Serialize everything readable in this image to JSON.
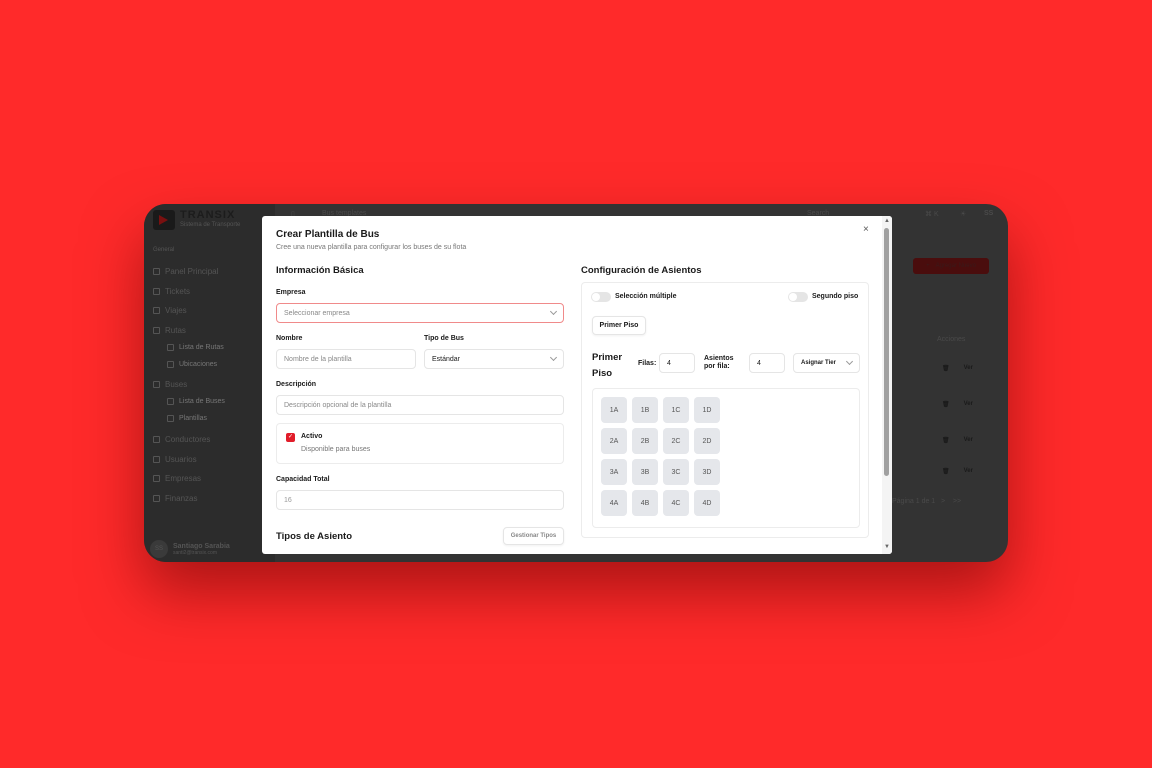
{
  "app": {
    "brand": "TRANSIX",
    "brand_sub": "Sistema de Transporte",
    "section": "General",
    "nav": [
      {
        "label": "Panel Principal",
        "icon": "dashboard-icon"
      },
      {
        "label": "Tickets",
        "icon": "ticket-icon"
      },
      {
        "label": "Viajes",
        "icon": "bus-icon"
      },
      {
        "label": "Rutas",
        "icon": "map-icon"
      },
      {
        "label": "Lista de Rutas",
        "icon": "route-icon",
        "sub": true
      },
      {
        "label": "Ubicaciones",
        "icon": "location-icon",
        "sub": true
      },
      {
        "label": "Buses",
        "icon": "bus-icon"
      },
      {
        "label": "Lista de Buses",
        "icon": "list-icon",
        "sub": true
      },
      {
        "label": "Plantillas",
        "icon": "file-icon",
        "sub": true
      },
      {
        "label": "Conductores",
        "icon": "user-icon"
      },
      {
        "label": "Usuarios",
        "icon": "users-icon"
      },
      {
        "label": "Empresas",
        "icon": "building-icon"
      },
      {
        "label": "Finanzas",
        "icon": "wallet-icon"
      }
    ],
    "user": {
      "initials": "SS",
      "name": "Santiago Sarabia",
      "email": "santi2@transix.com"
    },
    "header": {
      "breadcrumb": "Bus templates",
      "search": "Search",
      "shortcut": "⌘ K",
      "avatar": "SS"
    },
    "add_button": "Agregar Nuevo",
    "actions_header": "Acciones",
    "view_label": "Ver",
    "pagination": "Página 1 de 1",
    "next": ">",
    "last": ">>"
  },
  "modal": {
    "title": "Crear Plantilla de Bus",
    "subtitle": "Cree una nueva plantilla para configurar los buses de su flota",
    "basic": {
      "heading": "Información Básica",
      "empresa_label": "Empresa",
      "empresa_placeholder": "Seleccionar empresa",
      "nombre_label": "Nombre",
      "nombre_placeholder": "Nombre de la plantilla",
      "tipo_label": "Tipo de Bus",
      "tipo_value": "Estándar",
      "desc_label": "Descripción",
      "desc_placeholder": "Descripción opcional de la plantilla",
      "activo_label": "Activo",
      "activo_desc": "Disponible para buses",
      "activo_checked": true,
      "capacidad_label": "Capacidad Total",
      "capacidad_value": "16",
      "tipos_heading": "Tipos de Asiento",
      "gestionar": "Gestionar Tipos"
    },
    "seats": {
      "heading": "Configuración de Asientos",
      "multi": "Selección múltiple",
      "multi_on": false,
      "second": "Segundo piso",
      "second_on": false,
      "tab": "Primer Piso",
      "floor_title": "Primer Piso",
      "filas_label": "Filas:",
      "filas": "4",
      "asientos_label": "Asientos por fila:",
      "asientos": "4",
      "tier": "Asignar Tier",
      "grid": [
        [
          "1A",
          "1B",
          "1C",
          "1D"
        ],
        [
          "2A",
          "2B",
          "2C",
          "2D"
        ],
        [
          "3A",
          "3B",
          "3C",
          "3D"
        ],
        [
          "4A",
          "4B",
          "4C",
          "4D"
        ]
      ]
    },
    "accent": "#e11d2a"
  }
}
